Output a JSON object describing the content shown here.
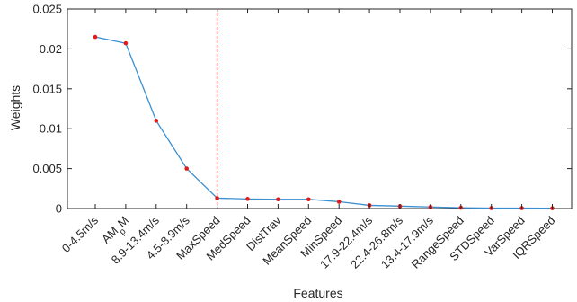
{
  "chart_data": {
    "type": "line",
    "title": "",
    "xlabel": "Features",
    "ylabel": "Weights",
    "ylim": [
      0,
      0.025
    ],
    "yticks": [
      0,
      0.005,
      0.01,
      0.015,
      0.02,
      0.025
    ],
    "ytick_labels": [
      "0",
      "0.005",
      "0.01",
      "0.015",
      "0.02",
      "0.025"
    ],
    "categories": [
      "0-4.5m/s",
      "AMpM",
      "8.9-13.4m/s",
      "4.5-8.9m/s",
      "MaxSpeed",
      "MedSpeed",
      "DistTrav",
      "MeanSpeed",
      "MinSpeed",
      "17.9-22.4m/s",
      "22.4-26.8m/s",
      "13.4-17.9m/s",
      "RangeSpeed",
      "STDSpeed",
      "VarSpeed",
      "IQRSpeed"
    ],
    "values": [
      0.0215,
      0.0207,
      0.011,
      0.005,
      0.0013,
      0.0012,
      0.00115,
      0.00115,
      0.00085,
      0.0004,
      0.0003,
      0.0002,
      0.0001,
      6e-05,
      5e-05,
      4e-05
    ],
    "vline_category": "MaxSpeed",
    "grid": false,
    "line_color": "#3a8fd0",
    "marker_color": "#e11a1a",
    "vline_color": "#e11a1a"
  }
}
